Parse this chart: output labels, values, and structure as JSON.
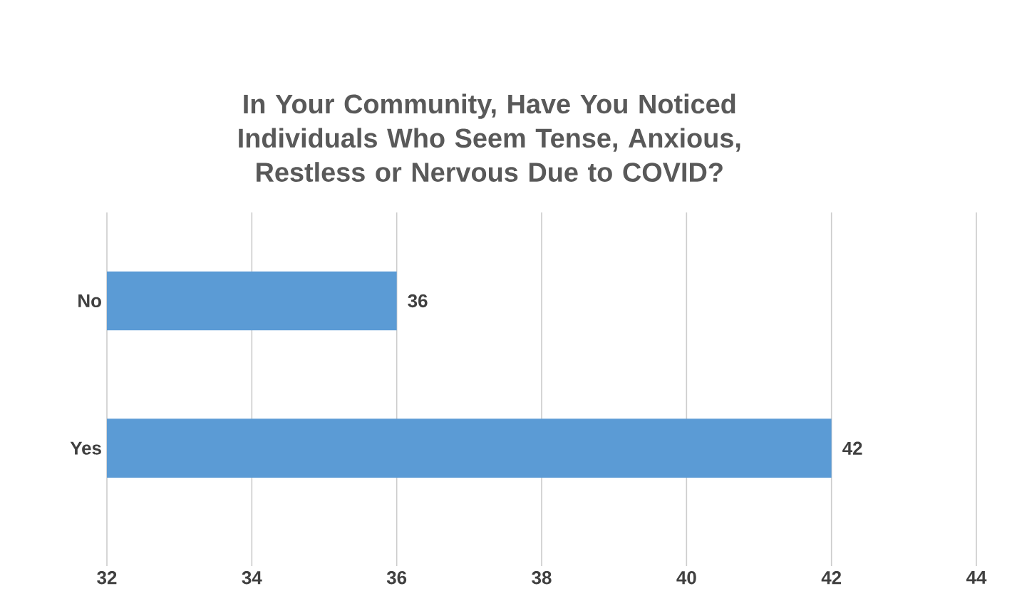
{
  "chart_data": {
    "type": "bar",
    "orientation": "horizontal",
    "title": "In Your Community, Have You Noticed Individuals Who Seem Tense, Anxious, Restless or Nervous Due to COVID?",
    "categories": [
      "No",
      "Yes"
    ],
    "values": [
      36,
      42
    ],
    "color": "#5b9bd5",
    "xlim": [
      32,
      44
    ],
    "xticks": [
      32,
      34,
      36,
      38,
      40,
      42,
      44
    ],
    "grid": "x",
    "data_labels": true
  }
}
